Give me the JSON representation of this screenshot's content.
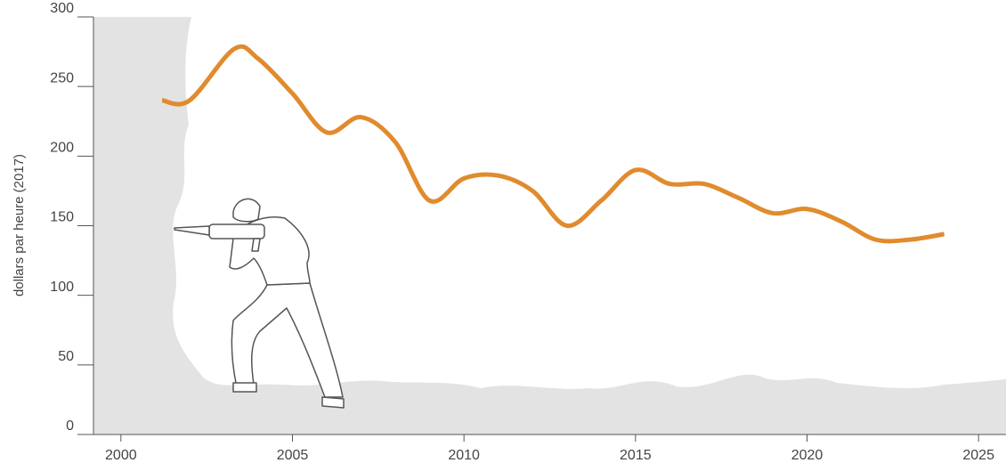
{
  "chart_data": {
    "type": "line",
    "ylabel": "dollars par heure (2017)",
    "x": [
      2001.2,
      2002,
      2003.3,
      2004,
      2005,
      2006,
      2007,
      2008,
      2009,
      2010,
      2011,
      2012,
      2013,
      2014,
      2015,
      2016,
      2017,
      2018,
      2019,
      2020,
      2021,
      2022,
      2023,
      2024
    ],
    "series": [
      {
        "name": "dollars par heure",
        "color": "#e08b2e",
        "values": [
          240,
          240,
          277,
          270,
          245,
          217,
          228,
          210,
          168,
          184,
          186,
          175,
          150,
          168,
          190,
          180,
          180,
          170,
          159,
          162,
          153,
          140,
          140,
          144
        ]
      }
    ],
    "xlim": [
      1999.2,
      2025.8
    ],
    "xticks": [
      2000,
      2005,
      2010,
      2015,
      2020,
      2025
    ],
    "ylim": [
      0,
      300
    ],
    "yticks": [
      0,
      50,
      100,
      150,
      200,
      250,
      300
    ]
  }
}
